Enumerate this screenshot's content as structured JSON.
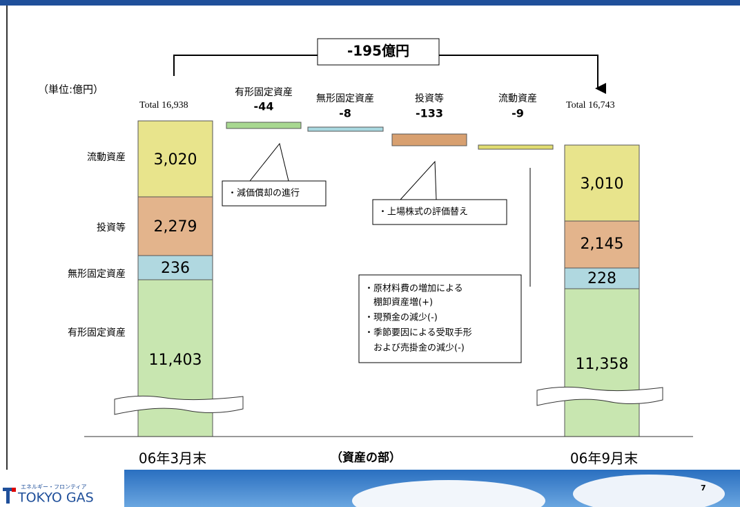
{
  "unit": "（単位:億円）",
  "difference": "-195億円",
  "before": {
    "total_label": "Total  16,938",
    "period": "06年3月末",
    "segments": [
      {
        "name": "流動資産",
        "value": "3,020"
      },
      {
        "name": "投資等",
        "value": "2,279"
      },
      {
        "name": "無形固定資産",
        "value": "236"
      },
      {
        "name": "有形固定資産",
        "value": "11,403"
      }
    ]
  },
  "after": {
    "total_label": "Total  16,743",
    "period": "06年9月末",
    "segments": [
      {
        "value": "3,010"
      },
      {
        "value": "2,145"
      },
      {
        "value": "228"
      },
      {
        "value": "11,358"
      }
    ]
  },
  "changes": [
    {
      "name": "有形固定資産",
      "value": "-44"
    },
    {
      "name": "無形固定資産",
      "value": "-8"
    },
    {
      "name": "投資等",
      "value": "-133"
    },
    {
      "name": "流動資産",
      "value": "-9"
    }
  ],
  "notes": [
    "・減価償却の進行",
    "・上場株式の評価替え",
    [
      "・原材料費の増加による",
      "　棚卸資産増(+)",
      "・現預金の減少(-)",
      "・季節要因による受取手形",
      "　および売掛金の減少(-)"
    ]
  ],
  "section": "（資産の部）",
  "logo": {
    "tagline": "エネルギー・フロンティア",
    "name": "TOKYO GAS"
  },
  "page_number": "7"
}
